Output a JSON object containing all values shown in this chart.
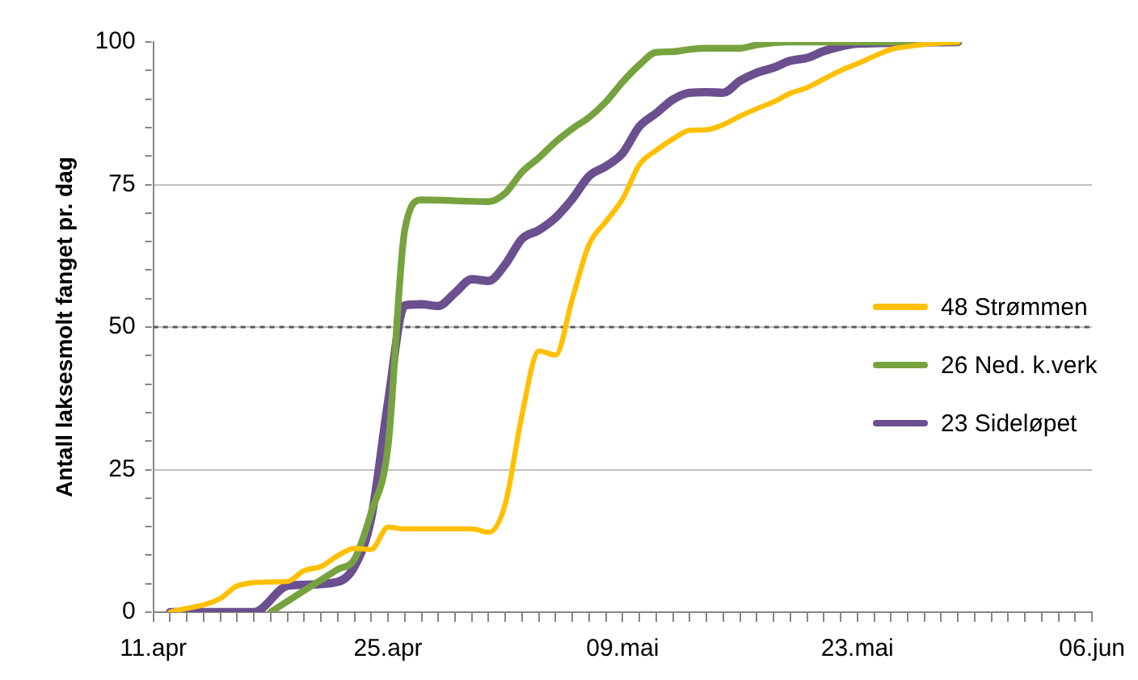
{
  "chart_data": {
    "type": "line",
    "ylabel": "Antall laksesmolt fanget pr. dag",
    "xlim": [
      "--04-11",
      "--06-06"
    ],
    "xticks": [
      {
        "value": "--04-11",
        "label": "11.apr"
      },
      {
        "value": "--04-12",
        "label": null
      },
      {
        "value": "--04-13",
        "label": null
      },
      {
        "value": "--04-14",
        "label": null
      },
      {
        "value": "--04-15",
        "label": null
      },
      {
        "value": "--04-16",
        "label": null
      },
      {
        "value": "--04-17",
        "label": null
      },
      {
        "value": "--04-18",
        "label": null
      },
      {
        "value": "--04-19",
        "label": null
      },
      {
        "value": "--04-20",
        "label": null
      },
      {
        "value": "--04-21",
        "label": null
      },
      {
        "value": "--04-22",
        "label": null
      },
      {
        "value": "--04-23",
        "label": null
      },
      {
        "value": "--04-24",
        "label": null
      },
      {
        "value": "--04-25",
        "label": "25.apr"
      },
      {
        "value": "--04-26",
        "label": null
      },
      {
        "value": "--04-27",
        "label": null
      },
      {
        "value": "--04-28",
        "label": null
      },
      {
        "value": "--04-29",
        "label": null
      },
      {
        "value": "--04-30",
        "label": null
      },
      {
        "value": "--05-01",
        "label": null
      },
      {
        "value": "--05-02",
        "label": null
      },
      {
        "value": "--05-03",
        "label": null
      },
      {
        "value": "--05-04",
        "label": null
      },
      {
        "value": "--05-05",
        "label": null
      },
      {
        "value": "--05-06",
        "label": null
      },
      {
        "value": "--05-07",
        "label": null
      },
      {
        "value": "--05-08",
        "label": null
      },
      {
        "value": "--05-09",
        "label": "09.mai"
      },
      {
        "value": "--05-10",
        "label": null
      },
      {
        "value": "--05-11",
        "label": null
      },
      {
        "value": "--05-12",
        "label": null
      },
      {
        "value": "--05-13",
        "label": null
      },
      {
        "value": "--05-14",
        "label": null
      },
      {
        "value": "--05-15",
        "label": null
      },
      {
        "value": "--05-16",
        "label": null
      },
      {
        "value": "--05-17",
        "label": null
      },
      {
        "value": "--05-18",
        "label": null
      },
      {
        "value": "--05-19",
        "label": null
      },
      {
        "value": "--05-20",
        "label": null
      },
      {
        "value": "--05-21",
        "label": null
      },
      {
        "value": "--05-22",
        "label": null
      },
      {
        "value": "--05-23",
        "label": "23.mai"
      },
      {
        "value": "--05-24",
        "label": null
      },
      {
        "value": "--05-25",
        "label": null
      },
      {
        "value": "--05-26",
        "label": null
      },
      {
        "value": "--05-27",
        "label": null
      },
      {
        "value": "--05-28",
        "label": null
      },
      {
        "value": "--05-29",
        "label": null
      },
      {
        "value": "--05-30",
        "label": null
      },
      {
        "value": "--05-31",
        "label": null
      },
      {
        "value": "--06-01",
        "label": null
      },
      {
        "value": "--06-02",
        "label": null
      },
      {
        "value": "--06-03",
        "label": null
      },
      {
        "value": "--06-04",
        "label": null
      },
      {
        "value": "--06-05",
        "label": null
      },
      {
        "value": "--06-06",
        "label": "06.jun"
      }
    ],
    "ylim": [
      0,
      100
    ],
    "yticks": [
      0,
      {
        "value": 5,
        "label": null
      },
      {
        "value": 10,
        "label": null
      },
      {
        "value": 15,
        "label": null
      },
      {
        "value": 20,
        "label": null
      },
      25,
      {
        "value": 30,
        "label": null
      },
      {
        "value": 35,
        "label": null
      },
      {
        "value": 40,
        "label": null
      },
      {
        "value": 45,
        "label": null
      },
      50,
      {
        "value": 55,
        "label": null
      },
      {
        "value": 60,
        "label": null
      },
      {
        "value": 65,
        "label": null
      },
      {
        "value": 70,
        "label": null
      },
      75,
      {
        "value": 80,
        "label": null
      },
      {
        "value": 85,
        "label": null
      },
      {
        "value": 90,
        "label": null
      },
      {
        "value": 95,
        "label": null
      },
      100
    ],
    "grid": "y",
    "ref_lines": [
      {
        "axis": "y",
        "value": 50,
        "color": "#595959",
        "line_style": "dotted"
      }
    ],
    "legend": "right",
    "marker": "none",
    "line_style": "solid",
    "series": [
      {
        "name": "48 Strømmen",
        "color": "#ffc000",
        "x": [
          "--04-12",
          "--04-15",
          "--04-16",
          "--04-18",
          "--04-19",
          "--04-20",
          "--04-21",
          "--04-22",
          "--04-23",
          "--04-24",
          "--04-25",
          "--04-26",
          "--04-30",
          "--05-01",
          "--05-02",
          "--05-03",
          "--05-04",
          "--05-05",
          "--05-06",
          "--05-07",
          "--05-08",
          "--05-09",
          "--05-10",
          "--05-11",
          "--05-12",
          "--05-13",
          "--05-14",
          "--05-15",
          "--05-16",
          "--05-17",
          "--05-18",
          "--05-19",
          "--05-20",
          "--05-21",
          "--05-22",
          "--05-23",
          "--05-24",
          "--05-25",
          "--05-26",
          "--05-27",
          "--05-29"
        ],
        "values": [
          0,
          2.4,
          4.6,
          5.3,
          5.4,
          7.3,
          8,
          9.9,
          11.2,
          11,
          14.9,
          14.6,
          14.6,
          14,
          19,
          34.7,
          45.8,
          45.1,
          55,
          64.5,
          68.5,
          72.5,
          78.5,
          81,
          83,
          84.5,
          84.6,
          85.5,
          87,
          88.3,
          89.5,
          91,
          92,
          93.5,
          95,
          96.2,
          97.5,
          98.7,
          99.2,
          99.6,
          100
        ]
      },
      {
        "name": "26 Ned. k.verk",
        "color": "#77a33f",
        "x": [
          "--04-18",
          "--04-20",
          "--04-22",
          "--04-23",
          "--04-24",
          "--04-25",
          "--04-26",
          "--04-27",
          "--05-01",
          "--05-02",
          "--05-03",
          "--05-04",
          "--05-05",
          "--05-06",
          "--05-07",
          "--05-08",
          "--05-09",
          "--05-10",
          "--05-11",
          "--05-12",
          "--05-13",
          "--05-14",
          "--05-16",
          "--05-17",
          "--05-19",
          "--05-29"
        ],
        "values": [
          0,
          3.8,
          7.5,
          9.3,
          17.5,
          29,
          67,
          72.3,
          72,
          73.5,
          77.2,
          79.7,
          82.5,
          84.8,
          86.8,
          89.5,
          93,
          96,
          98.2,
          98.3,
          98.7,
          98.9,
          98.9,
          99.5,
          100,
          100
        ]
      },
      {
        "name": "23 Sideløpet",
        "color": "#6b4f8f",
        "x": [
          "--04-12",
          "--04-17",
          "--04-19",
          "--04-20",
          "--04-22",
          "--04-23",
          "--04-24",
          "--04-25",
          "--04-26",
          "--04-27",
          "--04-28",
          "--04-29",
          "--04-30",
          "--05-01",
          "--05-02",
          "--05-03",
          "--05-04",
          "--05-05",
          "--05-06",
          "--05-07",
          "--05-08",
          "--05-09",
          "--05-10",
          "--05-11",
          "--05-12",
          "--05-13",
          "--05-14",
          "--05-15",
          "--05-16",
          "--05-17",
          "--05-18",
          "--05-19",
          "--05-20",
          "--05-21",
          "--05-22",
          "--05-23",
          "--05-29"
        ],
        "values": [
          0,
          0,
          4.6,
          4.8,
          5.3,
          8,
          16.5,
          36.7,
          53.8,
          54,
          53.7,
          56,
          58.4,
          58.1,
          61,
          65.5,
          67,
          69.2,
          72.5,
          76.5,
          78.2,
          80.5,
          85.2,
          87.5,
          89.9,
          91.1,
          91.2,
          91.1,
          93.2,
          94.6,
          95.5,
          96.7,
          97.2,
          98.4,
          99.2,
          99.7,
          100
        ]
      }
    ]
  }
}
